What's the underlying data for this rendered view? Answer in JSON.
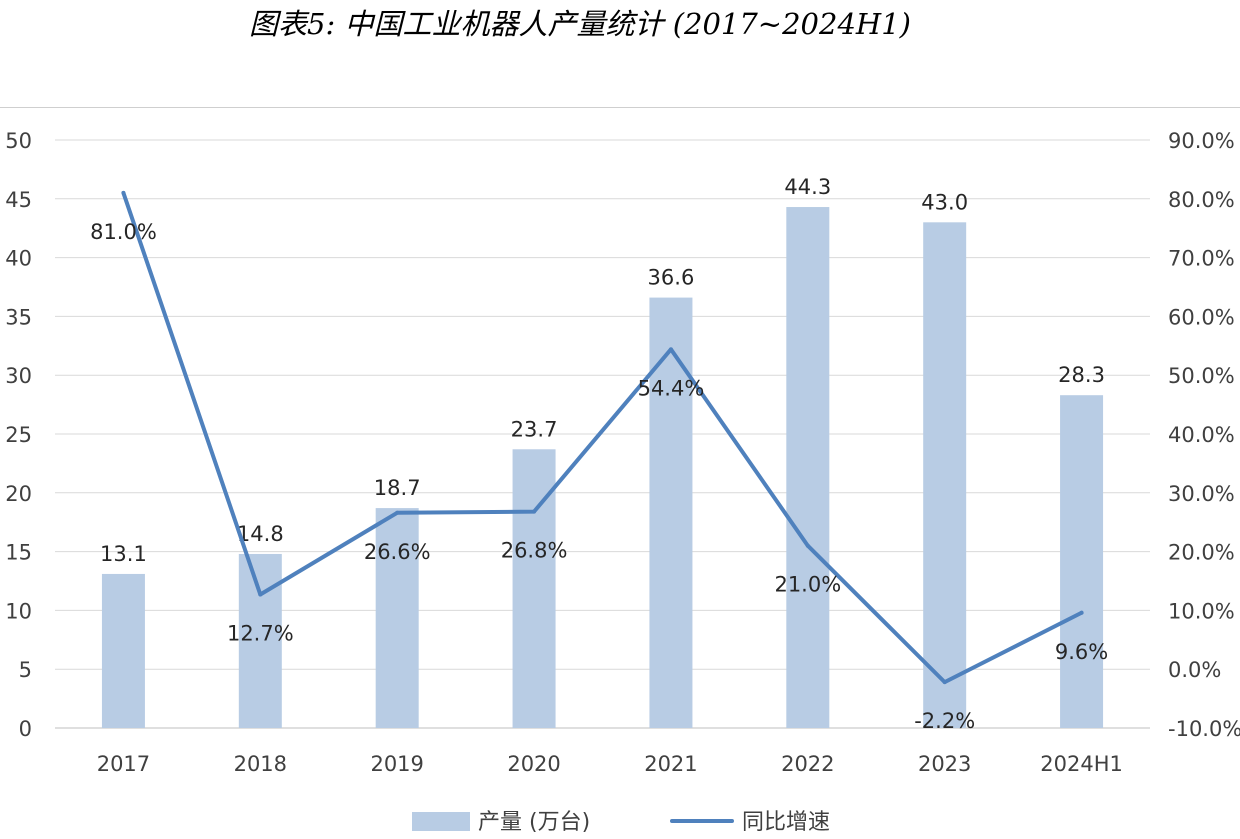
{
  "title": "图表5:   中国工业机器人产量统计 (2017~2024H1)",
  "chart_data": {
    "type": "bar",
    "categories": [
      "2017",
      "2018",
      "2019",
      "2020",
      "2021",
      "2022",
      "2023",
      "2024H1"
    ],
    "series": [
      {
        "name": "产量 (万台)",
        "type": "bar",
        "axis": "left",
        "color": "#b8cce4",
        "values": [
          13.1,
          14.8,
          18.7,
          23.7,
          36.6,
          44.3,
          43.0,
          28.3
        ],
        "labels": [
          "13.1",
          "14.8",
          "18.7",
          "23.7",
          "36.6",
          "44.3",
          "43.0",
          "28.3"
        ]
      },
      {
        "name": "同比增速",
        "type": "line",
        "axis": "right",
        "color": "#4f81bd",
        "values": [
          81.0,
          12.7,
          26.6,
          26.8,
          54.4,
          21.0,
          -2.2,
          9.6
        ],
        "labels": [
          "81.0%",
          "12.7%",
          "26.6%",
          "26.8%",
          "54.4%",
          "21.0%",
          "-2.2%",
          "9.6%"
        ]
      }
    ],
    "y_left": {
      "min": 0,
      "max": 50,
      "ticks": [
        "0",
        "5",
        "10",
        "15",
        "20",
        "25",
        "30",
        "35",
        "40",
        "45",
        "50"
      ]
    },
    "y_right": {
      "min": -10,
      "max": 90,
      "ticks": [
        "-10.0%",
        "0.0%",
        "10.0%",
        "20.0%",
        "30.0%",
        "40.0%",
        "50.0%",
        "60.0%",
        "70.0%",
        "80.0%",
        "90.0%"
      ]
    },
    "grid": true,
    "legend_position": "bottom"
  }
}
